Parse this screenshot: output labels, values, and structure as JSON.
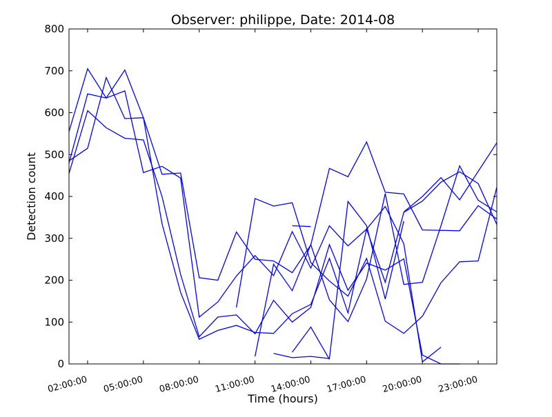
{
  "chart_data": {
    "type": "line",
    "title": "Observer: philippe, Date: 2014-08",
    "xlabel": "Time (hours)",
    "ylabel": "Detection count",
    "xlim": [
      "01:00:00",
      "24:00:00"
    ],
    "ylim": [
      0,
      800
    ],
    "xticks": [
      "02:00:00",
      "05:00:00",
      "08:00:00",
      "11:00:00",
      "14:00:00",
      "17:00:00",
      "20:00:00",
      "23:00:00"
    ],
    "yticks": [
      0,
      100,
      200,
      300,
      400,
      500,
      600,
      700,
      800
    ],
    "grid": false,
    "legend": false,
    "line_color": "#0000ff",
    "series": [
      {
        "points": [
          [
            "01:00",
            "555"
          ],
          [
            "02:00",
            "705"
          ],
          [
            "03:00",
            "635"
          ],
          [
            "04:00",
            "652"
          ],
          [
            "05:00",
            "457"
          ],
          [
            "06:00",
            "472"
          ],
          [
            "07:00",
            "444"
          ],
          [
            "08:00",
            "112"
          ],
          [
            "09:00",
            "148"
          ],
          [
            "10:00",
            "210"
          ],
          [
            "11:00",
            "259"
          ],
          [
            "12:00",
            "211"
          ],
          [
            "13:00",
            "316"
          ],
          [
            "14:00",
            "229"
          ],
          [
            "15:00",
            "330"
          ],
          [
            "16:00",
            "282"
          ],
          [
            "17:00",
            "322"
          ],
          [
            "18:00",
            "376"
          ],
          [
            "19:00",
            "287"
          ],
          [
            "20:00",
            "5"
          ],
          [
            "21:00",
            "40"
          ]
        ]
      },
      {
        "points": [
          [
            "01:00",
            "480"
          ],
          [
            "02:00",
            "645"
          ],
          [
            "03:00",
            "635"
          ],
          [
            "04:00",
            "702"
          ],
          [
            "05:00",
            "588"
          ],
          [
            "06:00",
            "335"
          ],
          [
            "07:00",
            "171"
          ],
          [
            "08:00",
            "59"
          ],
          [
            "09:00",
            "80"
          ],
          [
            "10:00",
            "92"
          ],
          [
            "11:00",
            "75"
          ],
          [
            "12:00",
            "73"
          ],
          [
            "13:00",
            "120"
          ],
          [
            "14:00",
            "142"
          ],
          [
            "15:00",
            "252"
          ],
          [
            "16:00",
            "122"
          ],
          [
            "17:00",
            "322"
          ],
          [
            "18:00",
            "195"
          ],
          [
            "19:00",
            "362"
          ],
          [
            "20:00",
            "389"
          ],
          [
            "21:00",
            "434"
          ],
          [
            "22:00",
            "459"
          ],
          [
            "23:00",
            "431"
          ],
          [
            "24:00",
            "333"
          ]
        ]
      },
      {
        "points": [
          [
            "01:00",
            "455"
          ],
          [
            "02:00",
            "605"
          ],
          [
            "03:00",
            "564"
          ],
          [
            "04:00",
            "539"
          ],
          [
            "05:00",
            "535"
          ],
          [
            "06:00",
            "400"
          ],
          [
            "07:00",
            "214"
          ],
          [
            "08:00",
            "65"
          ],
          [
            "09:00",
            "112"
          ],
          [
            "10:00",
            "117"
          ],
          [
            "11:00",
            "72"
          ],
          [
            "12:00",
            "152"
          ],
          [
            "13:00",
            "100"
          ],
          [
            "14:00",
            "135"
          ],
          [
            "15:00",
            "285"
          ],
          [
            "16:00",
            "176"
          ],
          [
            "17:00",
            "241"
          ],
          [
            "18:00",
            "224"
          ],
          [
            "19:00",
            "251"
          ],
          [
            "20:00",
            "21"
          ],
          [
            "21:00",
            "0"
          ],
          [
            "22:00",
            "0"
          ]
        ]
      },
      {
        "points": [
          [
            "01:00",
            "485"
          ],
          [
            "02:00",
            "515"
          ],
          [
            "03:00",
            "684"
          ],
          [
            "04:00",
            "586"
          ],
          [
            "05:00",
            "588"
          ],
          [
            "06:00",
            "453"
          ],
          [
            "07:00",
            "456"
          ],
          [
            "08:00",
            "206"
          ],
          [
            "09:00",
            "200"
          ],
          [
            "10:00",
            "315"
          ],
          [
            "11:00",
            "250"
          ],
          [
            "12:00",
            "246"
          ],
          [
            "13:00",
            "218"
          ],
          [
            "14:00",
            "284"
          ],
          [
            "15:00",
            "467"
          ],
          [
            "16:00",
            "447"
          ],
          [
            "17:00",
            "530"
          ],
          [
            "18:00",
            "410"
          ],
          [
            "19:00",
            "406"
          ],
          [
            "20:00",
            "320"
          ],
          [
            "21:00",
            "319"
          ],
          [
            "22:00",
            "318"
          ],
          [
            "23:00",
            "378"
          ],
          [
            "24:00",
            "346"
          ]
        ]
      },
      {
        "points": [
          [
            "10:00",
            "135"
          ],
          [
            "11:00",
            "395"
          ],
          [
            "12:00",
            "377"
          ],
          [
            "13:00",
            "385"
          ],
          [
            "14:00",
            "242"
          ],
          [
            "15:00",
            "198"
          ],
          [
            "16:00",
            "162"
          ],
          [
            "17:00",
            "252"
          ],
          [
            "18:00",
            "102"
          ],
          [
            "19:00",
            "73"
          ],
          [
            "20:00",
            "114"
          ],
          [
            "21:00",
            "194"
          ],
          [
            "22:00",
            "244"
          ],
          [
            "23:00",
            "246"
          ],
          [
            "24:00",
            "422"
          ]
        ]
      },
      {
        "points": [
          [
            "11:00",
            "18"
          ],
          [
            "12:00",
            "238"
          ],
          [
            "13:00",
            "175"
          ],
          [
            "14:00",
            "285"
          ],
          [
            "15:00",
            "153"
          ],
          [
            "16:00",
            "101"
          ],
          [
            "17:00",
            "203"
          ],
          [
            "18:00",
            "407"
          ],
          [
            "19:00",
            "190"
          ],
          [
            "20:00",
            "195"
          ],
          [
            "21:00",
            "330"
          ],
          [
            "22:00",
            "473"
          ],
          [
            "23:00",
            "391"
          ],
          [
            "24:00",
            "363"
          ]
        ]
      },
      {
        "points": [
          [
            "12:00",
            "25"
          ],
          [
            "13:00",
            "15"
          ],
          [
            "14:00",
            "18"
          ],
          [
            "15:00",
            "13"
          ],
          [
            "16:00",
            "388"
          ],
          [
            "17:00",
            "330"
          ],
          [
            "18:00",
            "155"
          ],
          [
            "19:00",
            "341"
          ]
        ]
      },
      {
        "points": [
          [
            "13:00",
            "330"
          ],
          [
            "14:00",
            "328"
          ]
        ]
      },
      {
        "points": [
          [
            "13:00",
            "28"
          ],
          [
            "14:00",
            "88"
          ],
          [
            "15:00",
            "11"
          ]
        ]
      },
      {
        "points": [
          [
            "19:00",
            "363"
          ],
          [
            "20:00",
            "400"
          ],
          [
            "21:00",
            "445"
          ],
          [
            "22:00",
            "392"
          ],
          [
            "23:00",
            "460"
          ],
          [
            "24:00",
            "528"
          ]
        ]
      }
    ]
  }
}
